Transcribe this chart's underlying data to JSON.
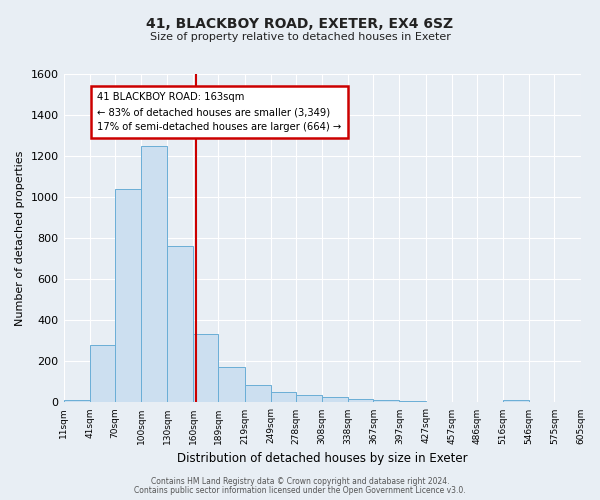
{
  "title": "41, BLACKBOY ROAD, EXETER, EX4 6SZ",
  "subtitle": "Size of property relative to detached houses in Exeter",
  "xlabel": "Distribution of detached houses by size in Exeter",
  "ylabel": "Number of detached properties",
  "bin_edges": [
    11,
    41,
    70,
    100,
    130,
    160,
    189,
    219,
    249,
    278,
    308,
    338,
    367,
    397,
    427,
    457,
    486,
    516,
    546,
    575,
    605
  ],
  "bin_labels": [
    "11sqm",
    "41sqm",
    "70sqm",
    "100sqm",
    "130sqm",
    "160sqm",
    "189sqm",
    "219sqm",
    "249sqm",
    "278sqm",
    "308sqm",
    "338sqm",
    "367sqm",
    "397sqm",
    "427sqm",
    "457sqm",
    "486sqm",
    "516sqm",
    "546sqm",
    "575sqm",
    "605sqm"
  ],
  "counts": [
    10,
    280,
    1040,
    1250,
    760,
    335,
    175,
    85,
    50,
    35,
    25,
    15,
    10,
    5,
    0,
    0,
    0,
    10,
    0,
    0
  ],
  "bar_color": "#ccdff0",
  "bar_edge_color": "#6aaed6",
  "property_line_x": 163,
  "property_line_color": "#cc0000",
  "annotation_title": "41 BLACKBOY ROAD: 163sqm",
  "annotation_line1": "← 83% of detached houses are smaller (3,349)",
  "annotation_line2": "17% of semi-detached houses are larger (664) →",
  "annotation_box_color": "white",
  "annotation_box_edge": "#cc0000",
  "ylim": [
    0,
    1600
  ],
  "yticks": [
    0,
    200,
    400,
    600,
    800,
    1000,
    1200,
    1400,
    1600
  ],
  "footer1": "Contains HM Land Registry data © Crown copyright and database right 2024.",
  "footer2": "Contains public sector information licensed under the Open Government Licence v3.0.",
  "background_color": "#e8eef4",
  "grid_color": "#ffffff"
}
